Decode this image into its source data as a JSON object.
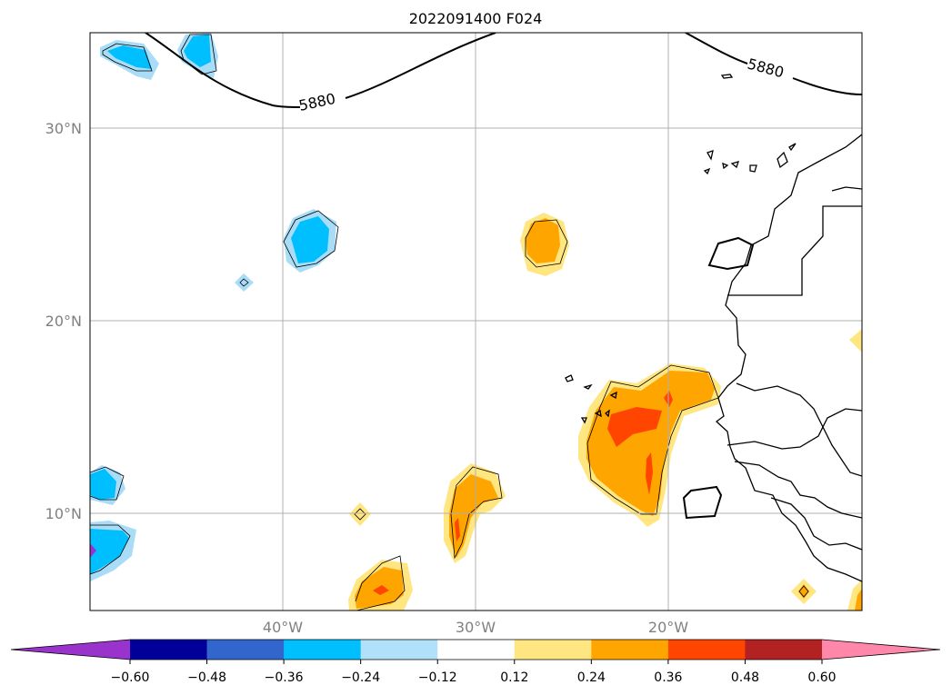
{
  "title": "2022091400 F024",
  "map": {
    "lat_labels": [
      "30°N",
      "20°N",
      "10°N"
    ],
    "lon_labels": [
      "40°W",
      "30°W",
      "20°W"
    ],
    "contour_level_label": "5880",
    "gridlines": true
  },
  "colorbar": {
    "ticks": [
      "−0.60",
      "−0.48",
      "−0.36",
      "−0.24",
      "−0.12",
      "0.12",
      "0.24",
      "0.36",
      "0.48",
      "0.60"
    ],
    "colors": [
      "#9933cc",
      "#000099",
      "#3366cc",
      "#00bfff",
      "#b0e0fa",
      "#ffffff",
      "#ffe680",
      "#ffa500",
      "#ff4500",
      "#b22222",
      "#ff88aa"
    ],
    "extend": "both"
  },
  "field_colors": {
    "light_blue": "#a9dcf7",
    "blue": "#00bfff",
    "purple": "#9933cc",
    "light_yellow": "#ffe680",
    "orange": "#ffa500",
    "red_orange": "#ff4500"
  }
}
